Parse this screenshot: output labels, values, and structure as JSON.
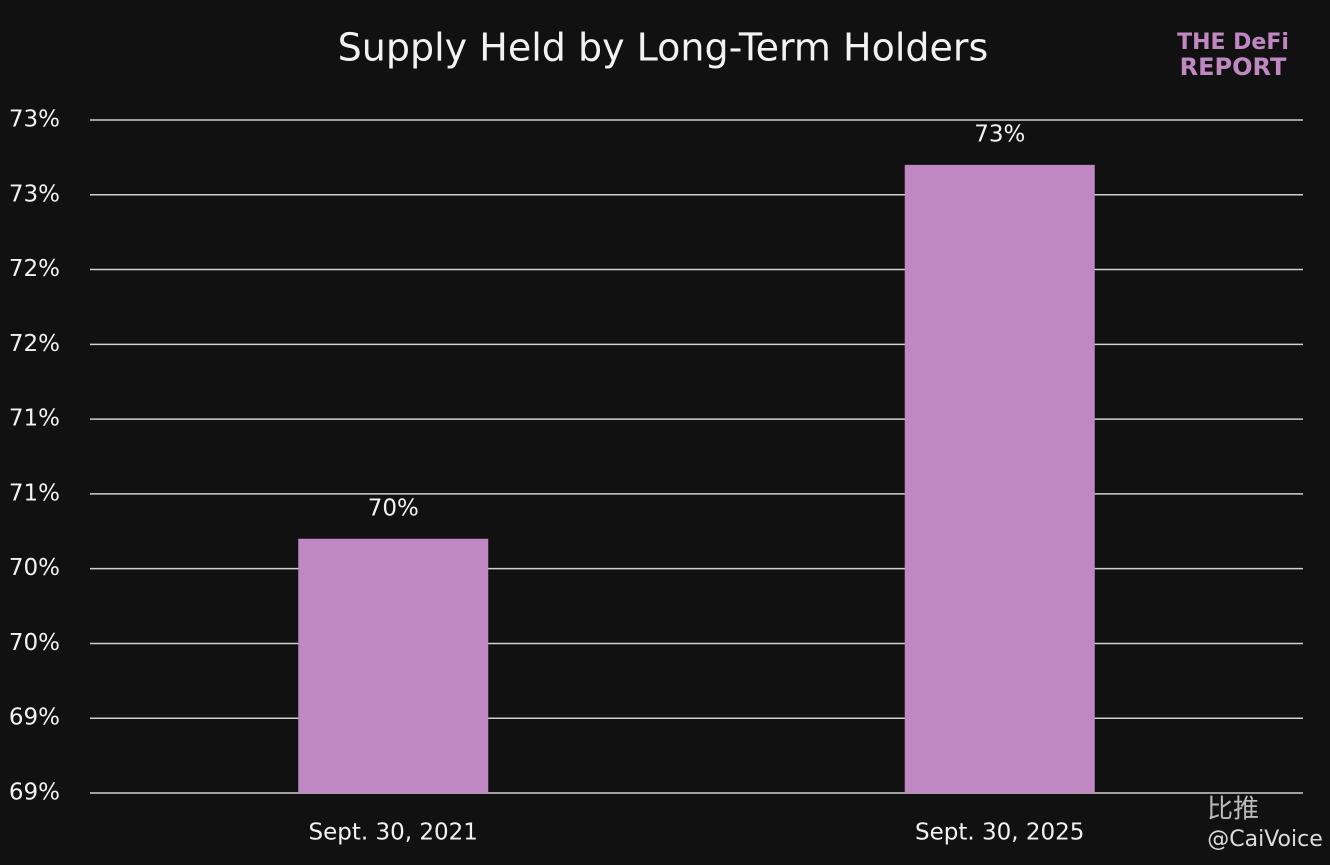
{
  "chart_data": {
    "type": "bar",
    "title": "Supply Held by Long-Term Holders",
    "categories": [
      "Sept. 30, 2021",
      "Sept. 30, 2025"
    ],
    "values": [
      70.2,
      72.7
    ],
    "value_labels": [
      "70%",
      "73%"
    ],
    "color": "#c088c2",
    "ylim": [
      68.5,
      73
    ],
    "yticks": [
      {
        "value": 68.5,
        "label": "69%"
      },
      {
        "value": 69,
        "label": "69%"
      },
      {
        "value": 69.5,
        "label": "70%"
      },
      {
        "value": 70,
        "label": "70%"
      },
      {
        "value": 70.5,
        "label": "71%"
      },
      {
        "value": 71,
        "label": "71%"
      },
      {
        "value": 71.5,
        "label": "72%"
      },
      {
        "value": 72,
        "label": "72%"
      },
      {
        "value": 72.5,
        "label": "73%"
      },
      {
        "value": 73,
        "label": "73%"
      }
    ],
    "grid": true
  },
  "logo": {
    "line1": "THE DeFi",
    "line2": "REPORT"
  },
  "watermark": {
    "brand": "比推",
    "handle": "@CaiVoice"
  }
}
